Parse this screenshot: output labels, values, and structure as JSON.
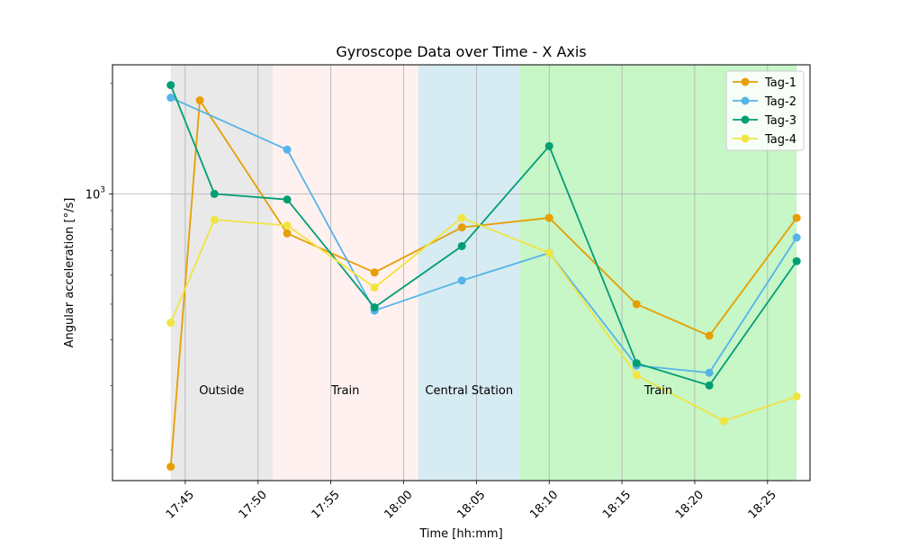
{
  "chart_data": {
    "type": "line",
    "title": "Gyroscope Data over Time - X Axis",
    "xlabel": "Time [hh:mm]",
    "ylabel": "Angular acceleration [°/s]",
    "yscale": "log",
    "ylim": [
      165,
      2250
    ],
    "xlim": [
      "17:40",
      "18:27:55"
    ],
    "grid": true,
    "legend_position": "top-right",
    "x_ticks": [
      {
        "value": "17:45",
        "label": "17:45"
      },
      {
        "value": "17:50",
        "label": "17:50"
      },
      {
        "value": "17:55",
        "label": "17:55"
      },
      {
        "value": "18:00",
        "label": "18:00"
      },
      {
        "value": "18:05",
        "label": "18:05"
      },
      {
        "value": "18:10",
        "label": "18:10"
      },
      {
        "value": "18:15",
        "label": "18:15"
      },
      {
        "value": "18:20",
        "label": "18:20"
      },
      {
        "value": "18:25",
        "label": "18:25"
      }
    ],
    "y_ticks": [
      {
        "value": 1000,
        "base": "10",
        "exp": "3"
      }
    ],
    "regions": [
      {
        "start": "17:44",
        "end": "17:51",
        "label": "Outside",
        "label_time": "17:47.5",
        "label_value": 290,
        "color": "#d3d3d3",
        "opacity": 0.5
      },
      {
        "start": "17:51",
        "end": "18:01",
        "label": "Train",
        "label_time": "17:56",
        "label_value": 290,
        "color": "#ffe4e1",
        "opacity": 0.5
      },
      {
        "start": "18:01",
        "end": "18:08",
        "label": "Central Station",
        "label_time": "18:04.5",
        "label_value": 290,
        "color": "#add8e6",
        "opacity": 0.5
      },
      {
        "start": "18:08",
        "end": "18:27",
        "label": "Train",
        "label_time": "18:17.5",
        "label_value": 290,
        "color": "#90ee90",
        "opacity": 0.5
      }
    ],
    "series": [
      {
        "name": "Tag-1",
        "color": "#E69F00",
        "x": [
          "17:44",
          "17:46",
          "17:52",
          "17:58",
          "18:04",
          "18:10",
          "18:16",
          "18:21",
          "18:27"
        ],
        "values": [
          180,
          1800,
          780,
          610,
          810,
          860,
          500,
          410,
          860
        ]
      },
      {
        "name": "Tag-2",
        "color": "#56B4E9",
        "x": [
          "17:44",
          "17:52",
          "17:58",
          "18:04",
          "18:10",
          "18:16",
          "18:21",
          "18:27"
        ],
        "values": [
          1830,
          1320,
          480,
          580,
          690,
          340,
          325,
          760
        ]
      },
      {
        "name": "Tag-3",
        "color": "#009E73",
        "x": [
          "17:44",
          "17:47",
          "17:52",
          "17:58",
          "18:04",
          "18:10",
          "18:16",
          "18:21",
          "18:27"
        ],
        "values": [
          1980,
          1000,
          965,
          490,
          720,
          1350,
          345,
          300,
          655
        ]
      },
      {
        "name": "Tag-4",
        "color": "#F0E442",
        "x": [
          "17:44",
          "17:47",
          "17:52",
          "17:58",
          "18:04",
          "18:10",
          "18:16",
          "18:22",
          "18:27"
        ],
        "values": [
          445,
          850,
          820,
          555,
          860,
          690,
          320,
          240,
          280
        ]
      }
    ]
  }
}
